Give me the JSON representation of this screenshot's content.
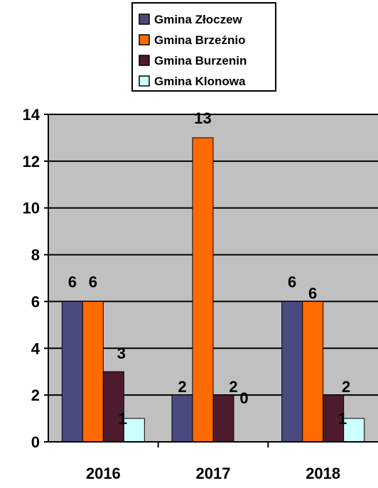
{
  "chart_data": {
    "type": "bar",
    "categories": [
      "2016",
      "2017",
      "2018"
    ],
    "series": [
      {
        "name": "Gmina Złoczew",
        "color": "#4A4A7E",
        "values": [
          6,
          2,
          6
        ]
      },
      {
        "name": "Gmina Brzeźnio",
        "color": "#FF6A00",
        "values": [
          6,
          13,
          6
        ]
      },
      {
        "name": "Gmina Burzenin",
        "color": "#4D1A2E",
        "values": [
          3,
          2,
          2
        ]
      },
      {
        "name": "Gmina Klonowa",
        "color": "#CCFFFF",
        "values": [
          1,
          0,
          1
        ]
      }
    ],
    "data_labels": [
      [
        "6",
        "6",
        "3",
        "1"
      ],
      [
        "2",
        "13",
        "2",
        "0"
      ],
      [
        "6",
        "6",
        "2",
        "1"
      ]
    ],
    "ylim": [
      0,
      14
    ],
    "yticks": [
      "0",
      "2",
      "4",
      "6",
      "8",
      "10",
      "12",
      "14"
    ],
    "grid": true,
    "plot_background": "#C0C0C0",
    "legend_position": "top"
  }
}
